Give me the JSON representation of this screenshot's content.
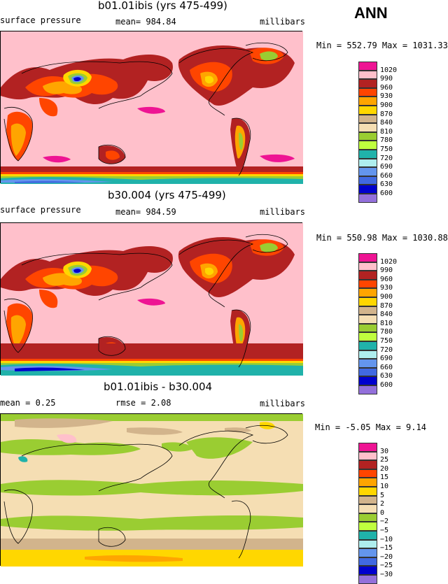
{
  "season": "ANN",
  "panels": [
    {
      "title": "b01.01ibis (yrs 475-499)",
      "left_label": "surface pressure",
      "center_label": "mean= 984.84",
      "units": "millibars",
      "minmax": "Min = 552.79 Max = 1031.33"
    },
    {
      "title": "b30.004 (yrs 475-499)",
      "left_label": "surface pressure",
      "center_label": "mean= 984.59",
      "units": "millibars",
      "minmax": "Min = 550.98 Max = 1030.88"
    },
    {
      "title": "b01.01ibis - b30.004",
      "left_label": "mean =    0.25",
      "center_label": "rmse =    2.08",
      "units": "millibars",
      "minmax": "Min =  -5.05 Max =    9.14"
    }
  ],
  "chart_data": [
    {
      "type": "heatmap",
      "title": "b01.01ibis (yrs 475-499)",
      "variable": "surface pressure",
      "units": "millibars",
      "mean": 984.84,
      "min": 552.79,
      "max": 1031.33,
      "levels": [
        "1020",
        "990",
        "960",
        "930",
        "900",
        "870",
        "840",
        "810",
        "780",
        "750",
        "720",
        "690",
        "660",
        "630",
        "600"
      ],
      "colors": [
        "#ee1493",
        "#ffc0cb",
        "#b22222",
        "#ff4500",
        "#ffa500",
        "#ffd700",
        "#d2b48c",
        "#f5deb3",
        "#9acd32",
        "#c0ff3e",
        "#20b2aa",
        "#afeeee",
        "#6495ed",
        "#4169e1",
        "#0000cd",
        "#9370db"
      ]
    },
    {
      "type": "heatmap",
      "title": "b30.004 (yrs 475-499)",
      "variable": "surface pressure",
      "units": "millibars",
      "mean": 984.59,
      "min": 550.98,
      "max": 1030.88,
      "levels": [
        "1020",
        "990",
        "960",
        "930",
        "900",
        "870",
        "840",
        "810",
        "780",
        "750",
        "720",
        "690",
        "660",
        "630",
        "600"
      ],
      "colors": [
        "#ee1493",
        "#ffc0cb",
        "#b22222",
        "#ff4500",
        "#ffa500",
        "#ffd700",
        "#d2b48c",
        "#f5deb3",
        "#9acd32",
        "#c0ff3e",
        "#20b2aa",
        "#afeeee",
        "#6495ed",
        "#4169e1",
        "#0000cd",
        "#9370db"
      ]
    },
    {
      "type": "heatmap",
      "title": "b01.01ibis - b30.004",
      "units": "millibars",
      "mean": 0.25,
      "rmse": 2.08,
      "min": -5.05,
      "max": 9.14,
      "levels": [
        "30",
        "25",
        "20",
        "15",
        "10",
        "5",
        "2",
        "0",
        "−2",
        "−5",
        "−10",
        "−15",
        "−20",
        "−25",
        "−30"
      ],
      "colors": [
        "#ee1493",
        "#ffc0cb",
        "#b22222",
        "#ff4500",
        "#ffa500",
        "#ffd700",
        "#d2b48c",
        "#f5deb3",
        "#9acd32",
        "#c0ff3e",
        "#20b2aa",
        "#afeeee",
        "#6495ed",
        "#4169e1",
        "#0000cd",
        "#9370db"
      ]
    }
  ]
}
